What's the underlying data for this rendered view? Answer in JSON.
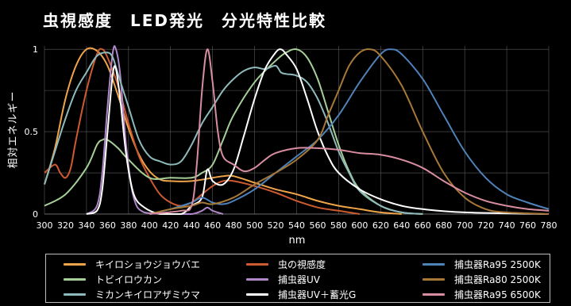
{
  "title": "虫視感度　LED発光　分光特性比較",
  "chart_data": {
    "type": "line",
    "title": "虫視感度　LED発光　分光特性比較",
    "xlabel": "nm",
    "ylabel": "相対エネルギー",
    "xlim": [
      300,
      780
    ],
    "ylim": [
      0,
      1.02
    ],
    "x_ticks": [
      300,
      320,
      340,
      360,
      380,
      400,
      420,
      440,
      460,
      480,
      500,
      520,
      540,
      560,
      580,
      600,
      620,
      640,
      660,
      680,
      700,
      720,
      740,
      760,
      780
    ],
    "y_ticks": [
      {
        "value": 0,
        "label": "0"
      },
      {
        "value": 0.5,
        "label": "0.5"
      },
      {
        "value": 1,
        "label": "1"
      }
    ],
    "grid": true,
    "legend_position": "bottom",
    "series": [
      {
        "name": "キイロショウジョウバエ",
        "color": "#f0a44a",
        "points": [
          [
            300,
            0.18
          ],
          [
            310,
            0.4
          ],
          [
            320,
            0.7
          ],
          [
            330,
            0.9
          ],
          [
            340,
            1.0
          ],
          [
            350,
            0.99
          ],
          [
            360,
            0.9
          ],
          [
            370,
            0.72
          ],
          [
            380,
            0.52
          ],
          [
            390,
            0.36
          ],
          [
            400,
            0.26
          ],
          [
            410,
            0.21
          ],
          [
            420,
            0.2
          ],
          [
            440,
            0.2
          ],
          [
            460,
            0.22
          ],
          [
            470,
            0.23
          ],
          [
            480,
            0.23
          ],
          [
            500,
            0.19
          ],
          [
            520,
            0.15
          ],
          [
            540,
            0.12
          ],
          [
            560,
            0.08
          ],
          [
            580,
            0.05
          ],
          [
            600,
            0.03
          ],
          [
            620,
            0.01
          ],
          [
            640,
            0.0
          ]
        ]
      },
      {
        "name": "虫の視感度",
        "color": "#cd5a30",
        "points": [
          [
            300,
            0.25
          ],
          [
            310,
            0.3
          ],
          [
            315,
            0.25
          ],
          [
            320,
            0.22
          ],
          [
            325,
            0.28
          ],
          [
            330,
            0.45
          ],
          [
            340,
            0.75
          ],
          [
            350,
            0.97
          ],
          [
            355,
            1.0
          ],
          [
            360,
            0.95
          ],
          [
            370,
            0.78
          ],
          [
            380,
            0.55
          ],
          [
            390,
            0.35
          ],
          [
            400,
            0.22
          ],
          [
            410,
            0.12
          ],
          [
            420,
            0.07
          ],
          [
            430,
            0.05
          ],
          [
            440,
            0.07
          ],
          [
            450,
            0.12
          ],
          [
            460,
            0.17
          ],
          [
            470,
            0.2
          ],
          [
            480,
            0.2
          ],
          [
            500,
            0.17
          ],
          [
            520,
            0.13
          ],
          [
            540,
            0.08
          ],
          [
            560,
            0.04
          ],
          [
            580,
            0.02
          ],
          [
            600,
            0.0
          ]
        ]
      },
      {
        "name": "トビイロウカン",
        "color": "#a6cf98",
        "points": [
          [
            300,
            0.05
          ],
          [
            320,
            0.12
          ],
          [
            340,
            0.28
          ],
          [
            350,
            0.42
          ],
          [
            355,
            0.45
          ],
          [
            360,
            0.45
          ],
          [
            370,
            0.4
          ],
          [
            380,
            0.33
          ],
          [
            400,
            0.22
          ],
          [
            420,
            0.22
          ],
          [
            440,
            0.22
          ],
          [
            450,
            0.25
          ],
          [
            460,
            0.3
          ],
          [
            470,
            0.45
          ],
          [
            480,
            0.6
          ],
          [
            500,
            0.8
          ],
          [
            520,
            0.93
          ],
          [
            530,
            0.98
          ],
          [
            540,
            1.0
          ],
          [
            550,
            0.95
          ],
          [
            560,
            0.82
          ],
          [
            570,
            0.62
          ],
          [
            580,
            0.42
          ],
          [
            590,
            0.26
          ],
          [
            600,
            0.15
          ],
          [
            620,
            0.05
          ],
          [
            640,
            0.01
          ],
          [
            660,
            0.0
          ]
        ]
      },
      {
        "name": "捕虫器UV",
        "color": "#b087c9",
        "points": [
          [
            340,
            0.0
          ],
          [
            350,
            0.05
          ],
          [
            355,
            0.25
          ],
          [
            360,
            0.65
          ],
          [
            365,
            0.98
          ],
          [
            368,
            1.0
          ],
          [
            372,
            0.85
          ],
          [
            378,
            0.4
          ],
          [
            385,
            0.1
          ],
          [
            395,
            0.01
          ],
          [
            420,
            0.0
          ],
          [
            440,
            0.0
          ],
          [
            450,
            0.02
          ],
          [
            455,
            0.04
          ],
          [
            460,
            0.02
          ],
          [
            470,
            0.0
          ]
        ]
      },
      {
        "name": "ミカンキイロアザミウマ",
        "color": "#8fbabc",
        "points": [
          [
            300,
            0.18
          ],
          [
            310,
            0.38
          ],
          [
            320,
            0.58
          ],
          [
            330,
            0.75
          ],
          [
            340,
            0.86
          ],
          [
            350,
            0.96
          ],
          [
            360,
            0.98
          ],
          [
            365,
            0.95
          ],
          [
            370,
            0.85
          ],
          [
            380,
            0.65
          ],
          [
            390,
            0.45
          ],
          [
            400,
            0.35
          ],
          [
            410,
            0.32
          ],
          [
            420,
            0.3
          ],
          [
            430,
            0.32
          ],
          [
            440,
            0.42
          ],
          [
            450,
            0.55
          ],
          [
            460,
            0.65
          ],
          [
            470,
            0.75
          ],
          [
            480,
            0.82
          ],
          [
            490,
            0.87
          ],
          [
            500,
            0.89
          ],
          [
            510,
            0.88
          ],
          [
            520,
            0.9
          ],
          [
            525,
            0.86
          ],
          [
            530,
            0.85
          ],
          [
            540,
            0.84
          ],
          [
            550,
            0.8
          ],
          [
            560,
            0.7
          ],
          [
            570,
            0.55
          ],
          [
            580,
            0.38
          ],
          [
            590,
            0.25
          ],
          [
            600,
            0.14
          ],
          [
            620,
            0.05
          ],
          [
            640,
            0.01
          ],
          [
            660,
            0.0
          ]
        ]
      },
      {
        "name": "捕虫器UV＋蓄光G",
        "color": "#ffffff",
        "points": [
          [
            340,
            0.0
          ],
          [
            350,
            0.02
          ],
          [
            355,
            0.15
          ],
          [
            360,
            0.5
          ],
          [
            365,
            0.85
          ],
          [
            368,
            0.88
          ],
          [
            372,
            0.7
          ],
          [
            378,
            0.35
          ],
          [
            385,
            0.12
          ],
          [
            395,
            0.04
          ],
          [
            410,
            0.0
          ],
          [
            430,
            0.0
          ],
          [
            440,
            0.05
          ],
          [
            450,
            0.1
          ],
          [
            455,
            0.27
          ],
          [
            460,
            0.2
          ],
          [
            470,
            0.18
          ],
          [
            480,
            0.27
          ],
          [
            490,
            0.48
          ],
          [
            500,
            0.7
          ],
          [
            510,
            0.88
          ],
          [
            520,
            0.98
          ],
          [
            525,
            1.0
          ],
          [
            530,
            0.97
          ],
          [
            540,
            0.88
          ],
          [
            550,
            0.7
          ],
          [
            560,
            0.5
          ],
          [
            570,
            0.35
          ],
          [
            580,
            0.25
          ],
          [
            600,
            0.15
          ],
          [
            620,
            0.09
          ],
          [
            640,
            0.05
          ],
          [
            660,
            0.03
          ],
          [
            700,
            0.01
          ],
          [
            780,
            0.0
          ]
        ]
      },
      {
        "name": "捕虫器Ra95 2500K",
        "color": "#4e82b9",
        "points": [
          [
            400,
            0.0
          ],
          [
            420,
            0.03
          ],
          [
            440,
            0.07
          ],
          [
            450,
            0.1
          ],
          [
            460,
            0.07
          ],
          [
            470,
            0.06
          ],
          [
            480,
            0.08
          ],
          [
            500,
            0.15
          ],
          [
            520,
            0.25
          ],
          [
            540,
            0.35
          ],
          [
            560,
            0.45
          ],
          [
            580,
            0.6
          ],
          [
            600,
            0.8
          ],
          [
            620,
            0.97
          ],
          [
            630,
            1.0
          ],
          [
            640,
            0.97
          ],
          [
            660,
            0.82
          ],
          [
            680,
            0.6
          ],
          [
            700,
            0.38
          ],
          [
            720,
            0.22
          ],
          [
            740,
            0.12
          ],
          [
            760,
            0.07
          ],
          [
            780,
            0.03
          ]
        ]
      },
      {
        "name": "捕虫器Ra80 2500K",
        "color": "#a77838",
        "points": [
          [
            400,
            0.0
          ],
          [
            420,
            0.03
          ],
          [
            440,
            0.05
          ],
          [
            450,
            0.07
          ],
          [
            460,
            0.06
          ],
          [
            480,
            0.1
          ],
          [
            500,
            0.18
          ],
          [
            520,
            0.25
          ],
          [
            540,
            0.33
          ],
          [
            560,
            0.45
          ],
          [
            570,
            0.6
          ],
          [
            580,
            0.75
          ],
          [
            590,
            0.9
          ],
          [
            600,
            0.98
          ],
          [
            610,
            1.0
          ],
          [
            620,
            0.96
          ],
          [
            640,
            0.78
          ],
          [
            660,
            0.5
          ],
          [
            680,
            0.25
          ],
          [
            700,
            0.1
          ],
          [
            720,
            0.03
          ],
          [
            740,
            0.01
          ],
          [
            780,
            0.0
          ]
        ]
      },
      {
        "name": "捕虫器Ra95 6500K",
        "color": "#d88da0",
        "points": [
          [
            400,
            0.0
          ],
          [
            430,
            0.02
          ],
          [
            440,
            0.05
          ],
          [
            445,
            0.3
          ],
          [
            450,
            0.75
          ],
          [
            455,
            1.0
          ],
          [
            460,
            0.8
          ],
          [
            465,
            0.5
          ],
          [
            470,
            0.35
          ],
          [
            480,
            0.3
          ],
          [
            490,
            0.26
          ],
          [
            500,
            0.28
          ],
          [
            510,
            0.33
          ],
          [
            520,
            0.37
          ],
          [
            540,
            0.4
          ],
          [
            560,
            0.4
          ],
          [
            580,
            0.39
          ],
          [
            600,
            0.37
          ],
          [
            620,
            0.36
          ],
          [
            640,
            0.33
          ],
          [
            660,
            0.28
          ],
          [
            680,
            0.2
          ],
          [
            700,
            0.13
          ],
          [
            720,
            0.08
          ],
          [
            740,
            0.05
          ],
          [
            760,
            0.03
          ],
          [
            780,
            0.02
          ]
        ]
      }
    ]
  }
}
